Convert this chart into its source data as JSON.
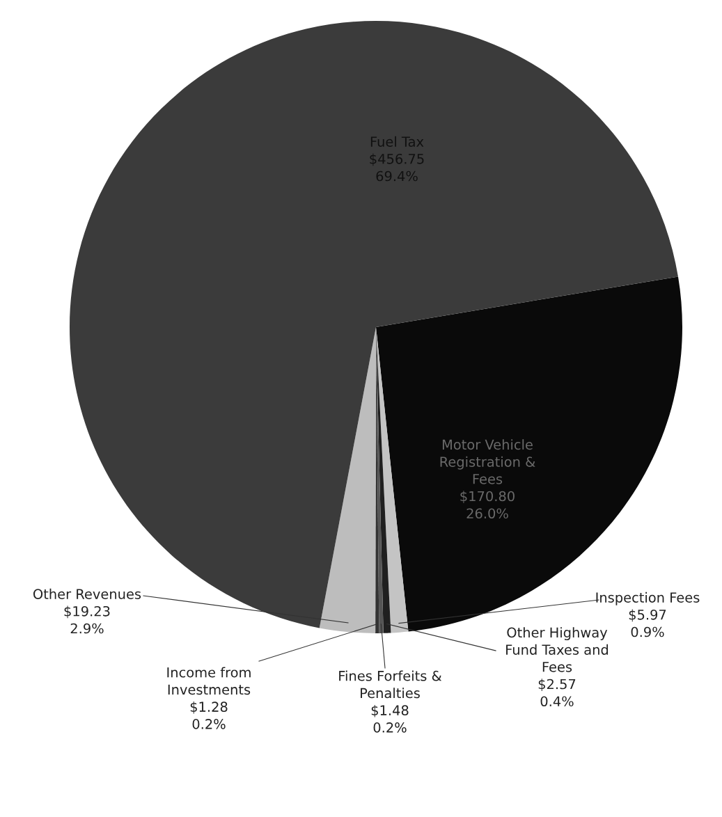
{
  "chart_data": {
    "type": "pie",
    "categories": [
      "Motor Vehicle Registration & Fees",
      "Inspection Fees",
      "Other Highway Fund Taxes and Fees",
      "Fines Forfeits & Penalties",
      "Income from Investments",
      "Other Revenues",
      "Fuel Tax"
    ],
    "values": [
      170.8,
      5.97,
      2.57,
      1.48,
      1.28,
      19.23,
      456.75
    ],
    "value_labels": [
      "$170.80\n26.0%",
      "$5.97\n0.9%",
      "$2.57\n0.4%",
      "$1.48\n0.2%",
      "$1.28\n0.2%",
      "$19.23\n2.9%",
      "$456.75\n69.4%"
    ],
    "colors": [
      "#0a0a0a",
      "#c4c4c4",
      "#202020",
      "#555555",
      "#333333",
      "#bdbdbd",
      "#3b3b3b"
    ],
    "legend": false
  }
}
